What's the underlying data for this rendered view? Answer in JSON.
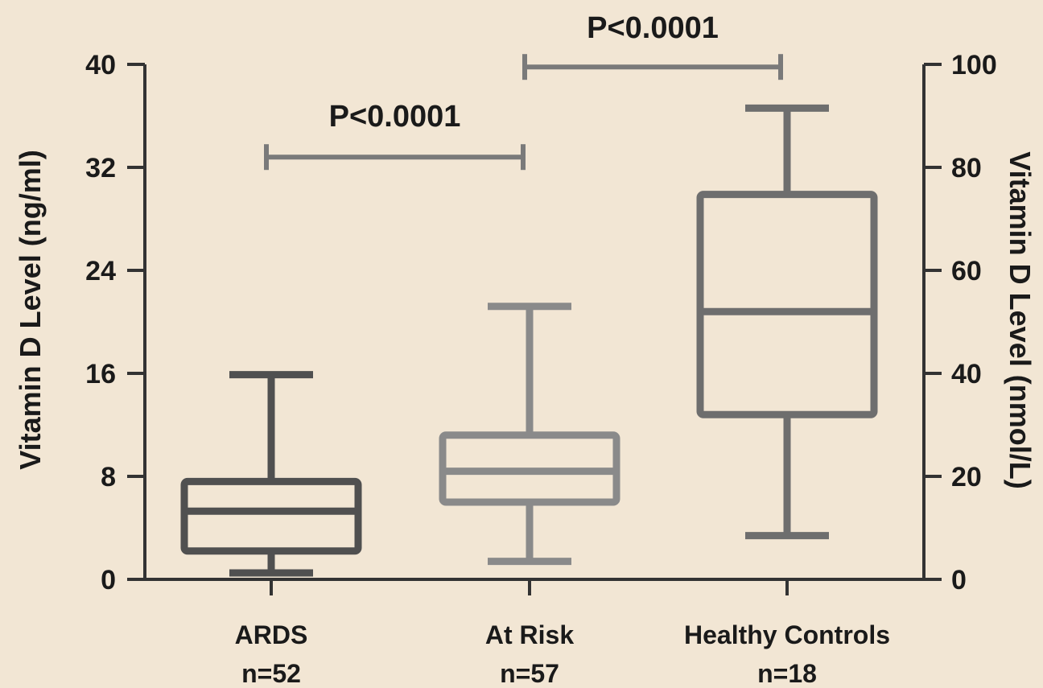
{
  "chart_data": {
    "type": "boxplot",
    "ylabel": "Vitamin D Level (ng/ml)",
    "y2label": "Vitamin D Level (nmol/L)",
    "ylim": [
      0,
      40
    ],
    "y2lim": [
      0,
      100
    ],
    "yticks": [
      "0",
      "8",
      "16",
      "24",
      "32",
      "40"
    ],
    "y2ticks": [
      "0",
      "20",
      "40",
      "60",
      "80",
      "100"
    ],
    "categories": [
      {
        "name": "ARDS",
        "n": "n=52"
      },
      {
        "name": "At Risk",
        "n": "n=57"
      },
      {
        "name": "Healthy Controls",
        "n": "n=18"
      }
    ],
    "boxes": [
      {
        "min": 0.5,
        "q1": 2.2,
        "median": 5.3,
        "q3": 7.6,
        "max": 15.9,
        "color": "#505050"
      },
      {
        "min": 1.4,
        "q1": 6.0,
        "median": 8.4,
        "q3": 11.2,
        "max": 21.2,
        "color": "#8a8a8a"
      },
      {
        "min": 3.4,
        "q1": 12.8,
        "median": 20.8,
        "q3": 29.9,
        "max": 36.6,
        "color": "#6e6e6e"
      }
    ],
    "comparisons": [
      {
        "from": 0,
        "to": 1,
        "label": "P<0.0001",
        "level": 32.8
      },
      {
        "from": 1,
        "to": 2,
        "label": "P<0.0001",
        "level": 39.8
      }
    ]
  }
}
